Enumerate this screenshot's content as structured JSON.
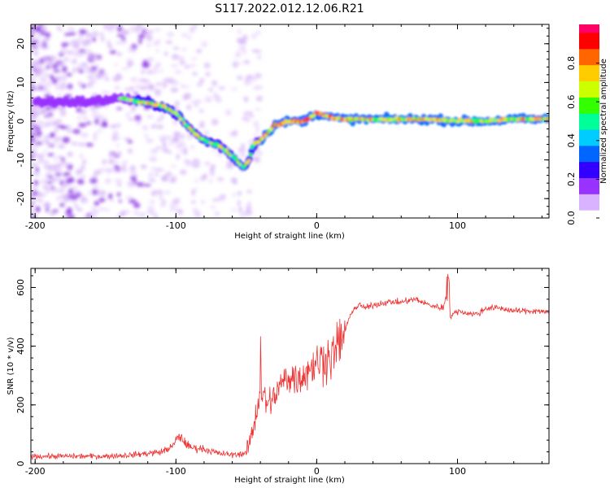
{
  "title": "S117.2022.012.12.06.R21",
  "chart_data": [
    {
      "type": "heatmap",
      "xlabel": "Height of straight line (km)",
      "ylabel": "Frequency (Hz)",
      "xlim": [
        -203,
        165
      ],
      "ylim": [
        -25,
        25
      ],
      "xticks": [
        -200,
        -100,
        0,
        100
      ],
      "yticks": [
        -20,
        -10,
        0,
        10,
        20
      ],
      "colorbar": {
        "label": "Normalized spectral amplitude",
        "range": [
          0,
          1
        ],
        "ticks": [
          "0.0",
          "0.2",
          "0.4",
          "0.6",
          "0.8"
        ],
        "colors": [
          "#ffffff",
          "#d9b3ff",
          "#9933ff",
          "#3300ff",
          "#0066ff",
          "#00ccff",
          "#00ff99",
          "#33ff00",
          "#ccff00",
          "#ffcc00",
          "#ff6600",
          "#ff0000",
          "#ff0066"
        ]
      },
      "track": {
        "x": [
          -200,
          -180,
          -160,
          -140,
          -125,
          -110,
          -100,
          -90,
          -80,
          -70,
          -60,
          -52,
          -48,
          -45,
          -40,
          -30,
          -20,
          -10,
          0,
          10,
          20,
          40,
          60,
          80,
          100,
          120,
          140,
          165
        ],
        "y": [
          5,
          5,
          5,
          6,
          5,
          4,
          2,
          -2,
          -5,
          -6,
          -9,
          -12,
          -10,
          -6,
          -5,
          -1,
          0,
          0,
          2,
          1,
          0.5,
          0.5,
          0.5,
          0.5,
          0,
          0,
          0.5,
          0.5
        ]
      }
    },
    {
      "type": "line",
      "xlabel": "Height of straight line (km)",
      "ylabel": "SNR (10 * v/v)",
      "xlim": [
        -203,
        165
      ],
      "ylim": [
        0,
        665
      ],
      "xticks": [
        -200,
        -100,
        0,
        100
      ],
      "yticks": [
        0,
        200,
        400,
        600
      ],
      "series_color": "#ee3333",
      "x": [
        -203,
        -190,
        -170,
        -150,
        -130,
        -110,
        -102,
        -98,
        -95,
        -90,
        -80,
        -70,
        -60,
        -50,
        -45,
        -40,
        -35,
        -32,
        -30,
        -25,
        -20,
        -15,
        -10,
        -5,
        0,
        5,
        10,
        15,
        20,
        25,
        30,
        35,
        40,
        50,
        60,
        70,
        80,
        90,
        93,
        95,
        100,
        110,
        115,
        120,
        130,
        140,
        150,
        160,
        165
      ],
      "y": [
        25,
        25,
        25,
        25,
        30,
        40,
        60,
        95,
        80,
        55,
        50,
        35,
        30,
        35,
        120,
        250,
        200,
        220,
        230,
        270,
        300,
        290,
        300,
        330,
        340,
        360,
        360,
        400,
        450,
        520,
        540,
        530,
        540,
        550,
        550,
        560,
        540,
        530,
        600,
        500,
        520,
        510,
        510,
        530,
        530,
        520,
        520,
        520,
        510
      ]
    }
  ]
}
